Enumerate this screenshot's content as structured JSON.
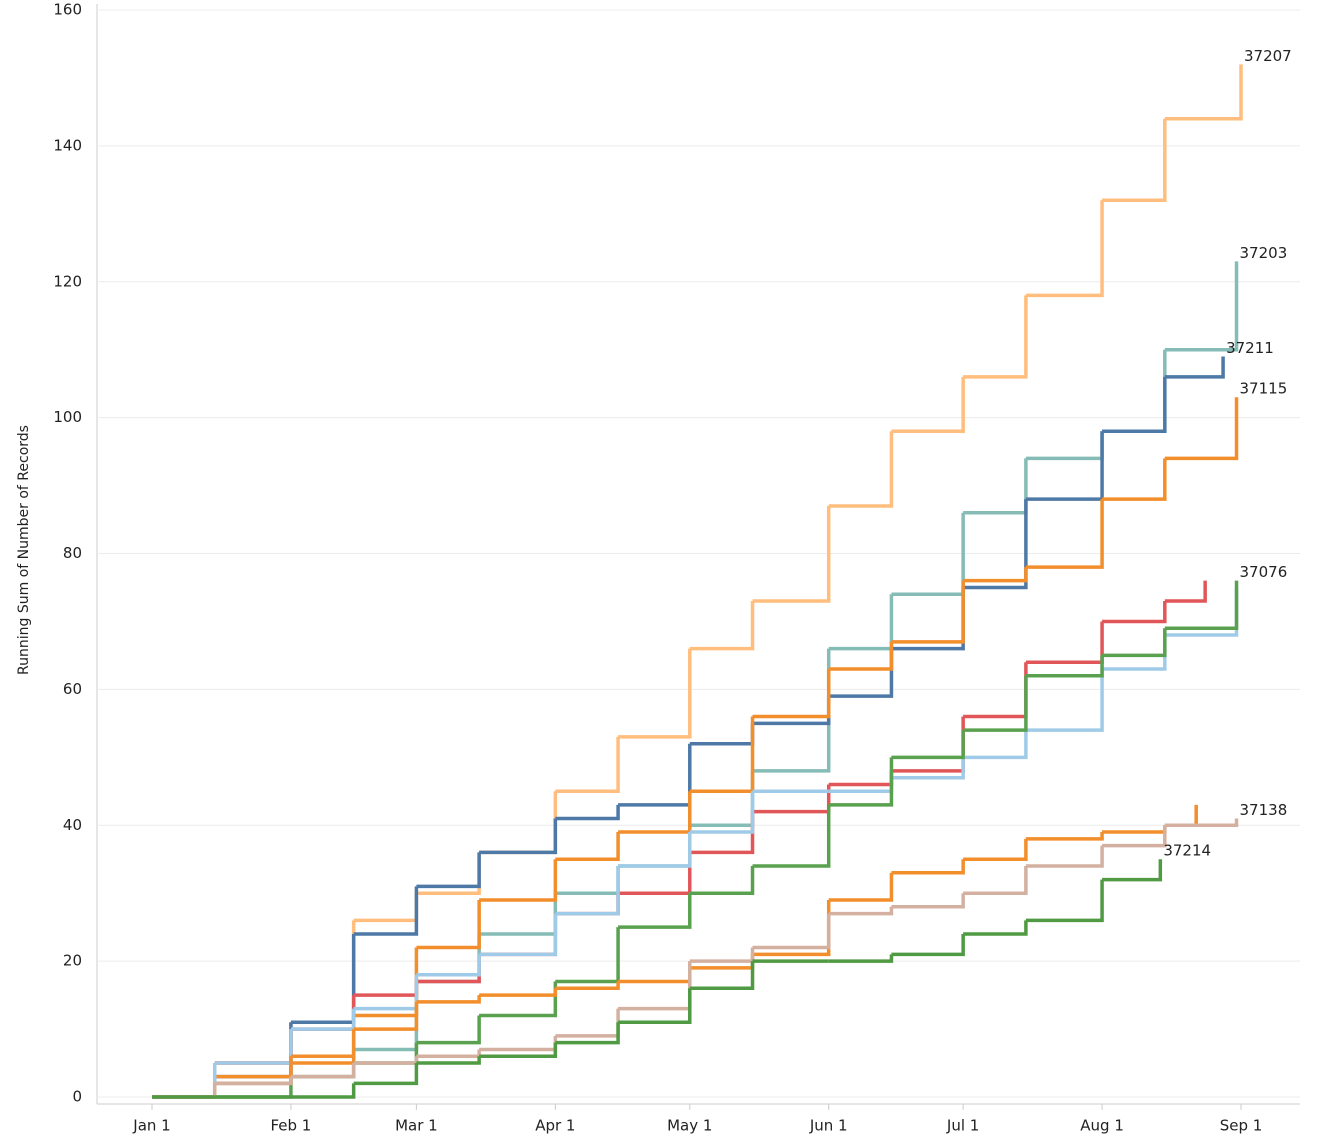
{
  "chart_data": {
    "type": "line",
    "step": true,
    "y_label": "Running Sum of Number of Records",
    "ylim": [
      0,
      160
    ],
    "yticks": [
      0,
      20,
      40,
      60,
      80,
      100,
      120,
      140,
      160
    ],
    "grid": true,
    "xticks": [
      "Jan 1",
      "Feb 1",
      "Mar 1",
      "Apr 1",
      "May 1",
      "Jun 1",
      "Jul 1",
      "Aug 1",
      "Sep 1"
    ],
    "series": [
      {
        "name": "37207",
        "color": "#ffbe7d",
        "x": [
          "Jan 1",
          "Jan 15",
          "Feb 1",
          "Feb 15",
          "Mar 1",
          "Mar 15",
          "Apr 1",
          "Apr 15",
          "May 1",
          "May 15",
          "Jun 1",
          "Jun 15",
          "Jul 1",
          "Jul 15",
          "Aug 1",
          "Aug 15",
          "Sep 1"
        ],
        "values": [
          0,
          5,
          11,
          26,
          30,
          36,
          45,
          53,
          66,
          73,
          87,
          98,
          106,
          118,
          132,
          144,
          152
        ]
      },
      {
        "name": "37203",
        "color": "#86bcb6",
        "x": [
          "Jan 1",
          "Jan 15",
          "Feb 1",
          "Feb 15",
          "Mar 1",
          "Mar 15",
          "Apr 1",
          "Apr 15",
          "May 1",
          "May 15",
          "Jun 1",
          "Jun 15",
          "Jul 1",
          "Jul 15",
          "Aug 1",
          "Aug 15",
          "Aug 31"
        ],
        "values": [
          0,
          2,
          6,
          7,
          17,
          24,
          30,
          34,
          40,
          48,
          66,
          74,
          86,
          94,
          98,
          110,
          123
        ]
      },
      {
        "name": "37211",
        "color": "#4e79a7",
        "x": [
          "Jan 1",
          "Jan 15",
          "Feb 1",
          "Feb 15",
          "Mar 1",
          "Mar 15",
          "Apr 1",
          "Apr 15",
          "May 1",
          "May 15",
          "Jun 1",
          "Jun 15",
          "Jul 1",
          "Jul 15",
          "Aug 1",
          "Aug 15",
          "Aug 28"
        ],
        "values": [
          0,
          3,
          11,
          24,
          31,
          36,
          41,
          43,
          52,
          55,
          59,
          66,
          75,
          88,
          98,
          106,
          109
        ]
      },
      {
        "name": "37115",
        "color": "#f28e2b",
        "x": [
          "Jan 1",
          "Jan 15",
          "Feb 1",
          "Feb 15",
          "Mar 1",
          "Mar 15",
          "Apr 1",
          "Apr 15",
          "May 1",
          "May 15",
          "Jun 1",
          "Jun 15",
          "Jul 1",
          "Jul 15",
          "Aug 1",
          "Aug 15",
          "Aug 31"
        ],
        "values": [
          0,
          3,
          5,
          12,
          22,
          29,
          35,
          39,
          45,
          56,
          63,
          67,
          76,
          78,
          88,
          94,
          103
        ]
      },
      {
        "name": null,
        "color": "#e15759",
        "x": [
          "Jan 1",
          "Jan 15",
          "Feb 1",
          "Feb 15",
          "Mar 1",
          "Mar 15",
          "Apr 1",
          "Apr 15",
          "May 1",
          "May 15",
          "Jun 1",
          "Jun 15",
          "Jul 1",
          "Jul 15",
          "Aug 1",
          "Aug 15",
          "Aug 24"
        ],
        "values": [
          0,
          5,
          10,
          15,
          17,
          21,
          27,
          30,
          36,
          42,
          46,
          48,
          56,
          64,
          70,
          73,
          76
        ]
      },
      {
        "name": null,
        "color": "#a0cbe8",
        "x": [
          "Jan 1",
          "Jan 15",
          "Feb 1",
          "Feb 15",
          "Mar 1",
          "Mar 15",
          "Apr 1",
          "Apr 15",
          "May 1",
          "May 15",
          "Jun 1",
          "Jun 15",
          "Jul 1",
          "Jul 15",
          "Aug 1",
          "Aug 15",
          "Aug 31"
        ],
        "values": [
          0,
          5,
          10,
          13,
          18,
          21,
          27,
          34,
          39,
          45,
          45,
          47,
          50,
          54,
          63,
          68,
          75
        ]
      },
      {
        "name": "37076",
        "color": "#59a14f",
        "x": [
          "Jan 1",
          "Jan 15",
          "Feb 1",
          "Feb 15",
          "Mar 1",
          "Mar 15",
          "Apr 1",
          "Apr 15",
          "May 1",
          "May 15",
          "Jun 1",
          "Jun 15",
          "Jul 1",
          "Jul 15",
          "Aug 1",
          "Aug 15",
          "Aug 31"
        ],
        "values": [
          0,
          0,
          3,
          5,
          8,
          12,
          17,
          25,
          30,
          34,
          43,
          50,
          54,
          62,
          65,
          69,
          76
        ]
      },
      {
        "name": null,
        "color": "#f28e2b",
        "x": [
          "Jan 1",
          "Jan 15",
          "Feb 1",
          "Feb 15",
          "Mar 1",
          "Mar 15",
          "Apr 1",
          "Apr 15",
          "May 1",
          "May 15",
          "Jun 1",
          "Jun 15",
          "Jul 1",
          "Jul 15",
          "Aug 1",
          "Aug 15",
          "Aug 22"
        ],
        "values": [
          0,
          2,
          6,
          10,
          14,
          15,
          16,
          17,
          19,
          21,
          29,
          33,
          35,
          38,
          39,
          40,
          43
        ]
      },
      {
        "name": "37138",
        "color": "#d4b0a0",
        "x": [
          "Jan 1",
          "Jan 15",
          "Feb 1",
          "Feb 15",
          "Mar 1",
          "Mar 15",
          "Apr 1",
          "Apr 15",
          "May 1",
          "May 15",
          "Jun 1",
          "Jun 15",
          "Jul 1",
          "Jul 15",
          "Aug 1",
          "Aug 15",
          "Aug 31"
        ],
        "values": [
          0,
          2,
          3,
          5,
          6,
          7,
          9,
          13,
          20,
          22,
          27,
          28,
          30,
          34,
          37,
          40,
          41
        ]
      },
      {
        "name": "37214",
        "color": "#4f9a43",
        "x": [
          "Jan 1",
          "Jan 15",
          "Feb 1",
          "Feb 15",
          "Mar 1",
          "Mar 15",
          "Apr 1",
          "Apr 15",
          "May 1",
          "May 15",
          "Jun 1",
          "Jun 15",
          "Jul 1",
          "Jul 15",
          "Aug 1",
          "Aug 14"
        ],
        "values": [
          0,
          0,
          0,
          2,
          5,
          6,
          8,
          11,
          16,
          20,
          20,
          21,
          24,
          26,
          32,
          35
        ]
      }
    ]
  }
}
